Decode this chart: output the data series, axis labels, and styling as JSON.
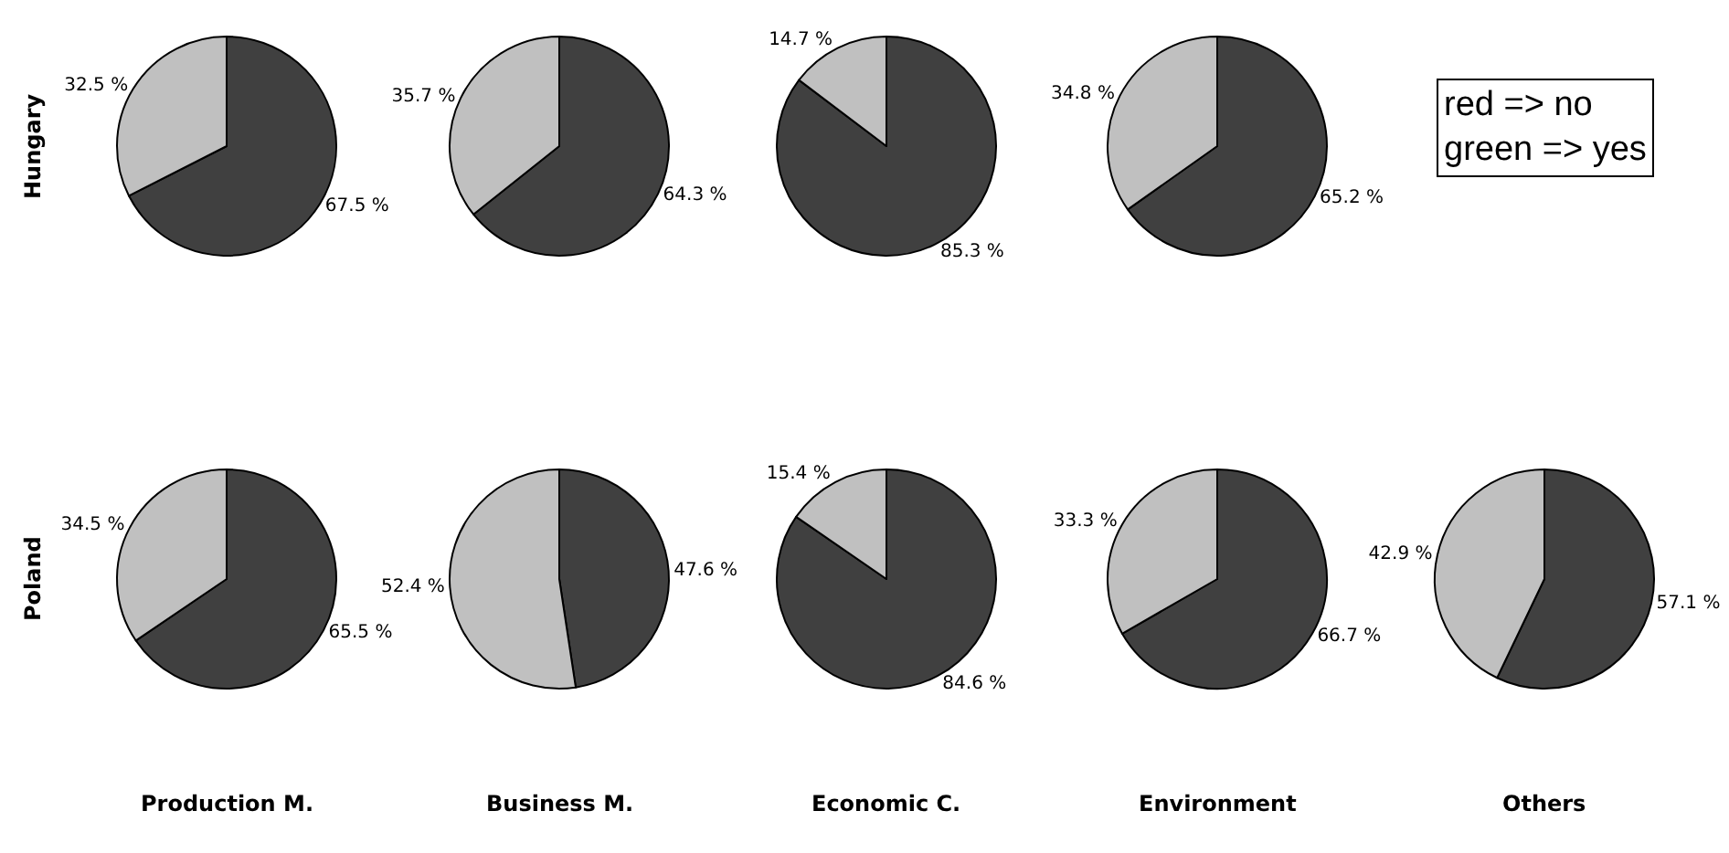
{
  "chart_data": [
    {
      "type": "pie",
      "ylabel": "Hungary",
      "categories": [
        null,
        null
      ],
      "values": [
        67.5,
        32.5
      ],
      "value_labels": [
        "67.5 %",
        "32.5 %"
      ],
      "colors": [
        "#404040",
        "#c0c0c0"
      ]
    },
    {
      "type": "pie",
      "categories": [
        null,
        null
      ],
      "values": [
        64.3,
        35.7
      ],
      "value_labels": [
        "64.3 %",
        "35.7 %"
      ],
      "colors": [
        "#404040",
        "#c0c0c0"
      ]
    },
    {
      "type": "pie",
      "categories": [
        null,
        null
      ],
      "values": [
        85.3,
        14.7
      ],
      "value_labels": [
        "85.3 %",
        "14.7 %"
      ],
      "colors": [
        "#404040",
        "#c0c0c0"
      ]
    },
    {
      "type": "pie",
      "categories": [
        null,
        null
      ],
      "values": [
        65.2,
        34.8
      ],
      "value_labels": [
        "65.2 %",
        "34.8 %"
      ],
      "colors": [
        "#404040",
        "#c0c0c0"
      ]
    },
    {
      "type": "other",
      "annotations": [
        "red => no",
        "green => yes"
      ]
    },
    {
      "type": "pie",
      "ylabel": "Poland",
      "xlabel": "Production M.",
      "categories": [
        null,
        null
      ],
      "values": [
        65.5,
        34.5
      ],
      "value_labels": [
        "65.5 %",
        "34.5 %"
      ],
      "colors": [
        "#404040",
        "#c0c0c0"
      ]
    },
    {
      "type": "pie",
      "xlabel": "Business M.",
      "categories": [
        null,
        null
      ],
      "values": [
        47.6,
        52.4
      ],
      "value_labels": [
        "47.6 %",
        "52.4 %"
      ],
      "colors": [
        "#404040",
        "#c0c0c0"
      ]
    },
    {
      "type": "pie",
      "xlabel": "Economic C.",
      "categories": [
        null,
        null
      ],
      "values": [
        84.6,
        15.4
      ],
      "value_labels": [
        "84.6 %",
        "15.4 %"
      ],
      "colors": [
        "#404040",
        "#c0c0c0"
      ]
    },
    {
      "type": "pie",
      "xlabel": "Environment",
      "categories": [
        null,
        null
      ],
      "values": [
        66.7,
        33.3
      ],
      "value_labels": [
        "66.7 %",
        "33.3 %"
      ],
      "colors": [
        "#404040",
        "#c0c0c0"
      ]
    },
    {
      "type": "pie",
      "xlabel": "Others",
      "categories": [
        null,
        null
      ],
      "values": [
        57.1,
        42.9
      ],
      "value_labels": [
        "57.1 %",
        "42.9 %"
      ],
      "colors": [
        "#404040",
        "#c0c0c0"
      ]
    }
  ]
}
